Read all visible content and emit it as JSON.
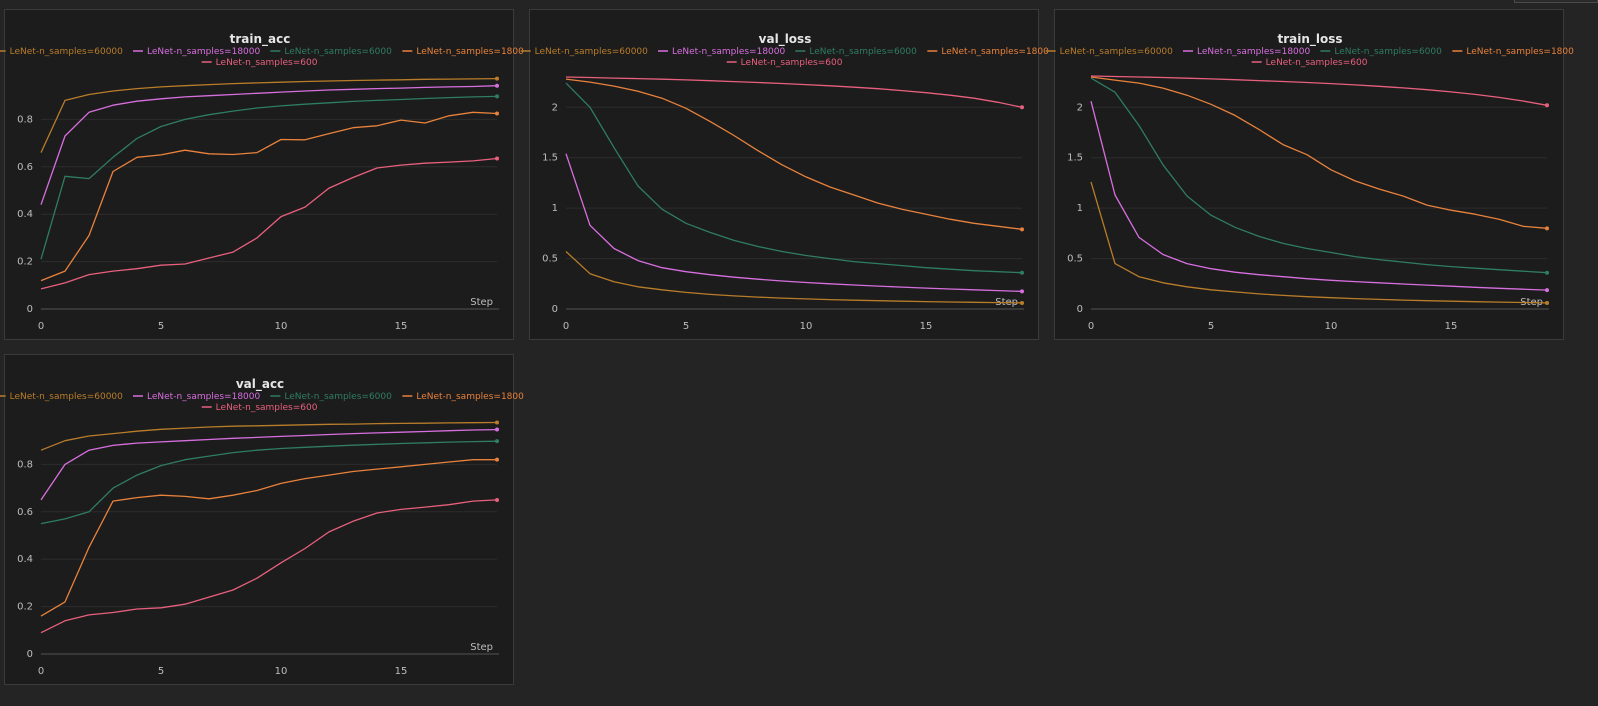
{
  "chart_data": [
    {
      "type": "line",
      "title": "train_acc",
      "xlabel": "Step",
      "xlim": [
        0,
        19
      ],
      "ylim": [
        0,
        1
      ],
      "xticks": [
        0,
        5,
        10,
        15
      ],
      "yticks": [
        0,
        0.2,
        0.4,
        0.6,
        0.8
      ],
      "ytick_labels": [
        "0",
        "0.2",
        "0.4",
        "0.6",
        "0.8"
      ],
      "x": [
        0,
        1,
        2,
        3,
        4,
        5,
        6,
        7,
        8,
        9,
        10,
        11,
        12,
        13,
        14,
        15,
        16,
        17,
        18,
        19
      ],
      "series": [
        {
          "name": "LeNet-n_samples=60000",
          "color": "#b97d2a",
          "values": [
            0.66,
            0.88,
            0.905,
            0.92,
            0.93,
            0.937,
            0.942,
            0.947,
            0.951,
            0.954,
            0.957,
            0.96,
            0.962,
            0.964,
            0.966,
            0.967,
            0.969,
            0.97,
            0.971,
            0.972
          ]
        },
        {
          "name": "LeNet-n_samples=18000",
          "color": "#d86fe0",
          "values": [
            0.44,
            0.73,
            0.83,
            0.86,
            0.877,
            0.887,
            0.895,
            0.9,
            0.905,
            0.91,
            0.915,
            0.92,
            0.924,
            0.927,
            0.93,
            0.932,
            0.935,
            0.937,
            0.939,
            0.942
          ]
        },
        {
          "name": "LeNet-n_samples=6000",
          "color": "#2f7d62",
          "values": [
            0.21,
            0.56,
            0.55,
            0.64,
            0.72,
            0.77,
            0.8,
            0.82,
            0.835,
            0.848,
            0.857,
            0.864,
            0.87,
            0.876,
            0.88,
            0.884,
            0.888,
            0.892,
            0.895,
            0.897
          ]
        },
        {
          "name": "LeNet-n_samples=1800",
          "color": "#e8823c",
          "values": [
            0.12,
            0.16,
            0.31,
            0.58,
            0.64,
            0.65,
            0.67,
            0.655,
            0.652,
            0.66,
            0.715,
            0.714,
            0.74,
            0.765,
            0.773,
            0.797,
            0.785,
            0.815,
            0.83,
            0.825
          ]
        },
        {
          "name": "LeNet-n_samples=600",
          "color": "#e8607e",
          "values": [
            0.085,
            0.11,
            0.145,
            0.16,
            0.17,
            0.185,
            0.19,
            0.215,
            0.24,
            0.3,
            0.39,
            0.43,
            0.51,
            0.555,
            0.595,
            0.607,
            0.615,
            0.62,
            0.625,
            0.635
          ]
        }
      ]
    },
    {
      "type": "line",
      "title": "val_loss",
      "xlabel": "Step",
      "xlim": [
        0,
        19
      ],
      "ylim": [
        0,
        2.35
      ],
      "xticks": [
        0,
        5,
        10,
        15
      ],
      "yticks": [
        0,
        0.5,
        1,
        1.5,
        2
      ],
      "ytick_labels": [
        "0",
        "0.5",
        "1",
        "1.5",
        "2"
      ],
      "x": [
        0,
        1,
        2,
        3,
        4,
        5,
        6,
        7,
        8,
        9,
        10,
        11,
        12,
        13,
        14,
        15,
        16,
        17,
        18,
        19
      ],
      "series": [
        {
          "name": "LeNet-n_samples=60000",
          "color": "#b97d2a",
          "values": [
            0.57,
            0.35,
            0.27,
            0.22,
            0.19,
            0.165,
            0.145,
            0.13,
            0.118,
            0.108,
            0.1,
            0.093,
            0.087,
            0.082,
            0.077,
            0.073,
            0.069,
            0.066,
            0.063,
            0.06
          ]
        },
        {
          "name": "LeNet-n_samples=18000",
          "color": "#d86fe0",
          "values": [
            1.54,
            0.83,
            0.6,
            0.48,
            0.41,
            0.37,
            0.34,
            0.315,
            0.295,
            0.278,
            0.263,
            0.25,
            0.238,
            0.227,
            0.217,
            0.207,
            0.198,
            0.19,
            0.182,
            0.175
          ]
        },
        {
          "name": "LeNet-n_samples=6000",
          "color": "#2f7d62",
          "values": [
            2.24,
            2.0,
            1.6,
            1.22,
            0.99,
            0.85,
            0.76,
            0.68,
            0.62,
            0.57,
            0.53,
            0.5,
            0.47,
            0.45,
            0.43,
            0.41,
            0.395,
            0.38,
            0.37,
            0.36
          ]
        },
        {
          "name": "LeNet-n_samples=1800",
          "color": "#e8823c",
          "values": [
            2.28,
            2.25,
            2.21,
            2.16,
            2.09,
            1.99,
            1.86,
            1.72,
            1.57,
            1.43,
            1.31,
            1.21,
            1.13,
            1.05,
            0.99,
            0.94,
            0.89,
            0.85,
            0.82,
            0.79
          ]
        },
        {
          "name": "LeNet-n_samples=600",
          "color": "#e8607e",
          "values": [
            2.3,
            2.295,
            2.29,
            2.285,
            2.279,
            2.272,
            2.264,
            2.255,
            2.246,
            2.236,
            2.225,
            2.213,
            2.199,
            2.184,
            2.166,
            2.145,
            2.12,
            2.09,
            2.05,
            2.0
          ]
        }
      ]
    },
    {
      "type": "line",
      "title": "train_loss",
      "xlabel": "Step",
      "xlim": [
        0,
        19
      ],
      "ylim": [
        0,
        2.35
      ],
      "xticks": [
        0,
        5,
        10,
        15
      ],
      "yticks": [
        0,
        0.5,
        1,
        1.5,
        2
      ],
      "ytick_labels": [
        "0",
        "0.5",
        "1",
        "1.5",
        "2"
      ],
      "x": [
        0,
        1,
        2,
        3,
        4,
        5,
        6,
        7,
        8,
        9,
        10,
        11,
        12,
        13,
        14,
        15,
        16,
        17,
        18,
        19
      ],
      "series": [
        {
          "name": "LeNet-n_samples=60000",
          "color": "#b97d2a",
          "values": [
            1.26,
            0.45,
            0.32,
            0.26,
            0.22,
            0.19,
            0.17,
            0.15,
            0.135,
            0.122,
            0.112,
            0.103,
            0.095,
            0.088,
            0.082,
            0.077,
            0.072,
            0.068,
            0.064,
            0.06
          ]
        },
        {
          "name": "LeNet-n_samples=18000",
          "color": "#d86fe0",
          "values": [
            2.06,
            1.13,
            0.71,
            0.54,
            0.45,
            0.4,
            0.365,
            0.34,
            0.32,
            0.3,
            0.285,
            0.272,
            0.26,
            0.248,
            0.237,
            0.226,
            0.215,
            0.205,
            0.196,
            0.187
          ]
        },
        {
          "name": "LeNet-n_samples=6000",
          "color": "#2f7d62",
          "values": [
            2.29,
            2.15,
            1.82,
            1.43,
            1.12,
            0.93,
            0.81,
            0.72,
            0.65,
            0.6,
            0.56,
            0.52,
            0.49,
            0.465,
            0.44,
            0.42,
            0.405,
            0.39,
            0.375,
            0.36
          ]
        },
        {
          "name": "LeNet-n_samples=1800",
          "color": "#e8823c",
          "values": [
            2.3,
            2.27,
            2.24,
            2.19,
            2.12,
            2.03,
            1.92,
            1.78,
            1.63,
            1.53,
            1.38,
            1.27,
            1.19,
            1.12,
            1.03,
            0.98,
            0.94,
            0.89,
            0.82,
            0.8
          ]
        },
        {
          "name": "LeNet-n_samples=600",
          "color": "#e8607e",
          "values": [
            2.31,
            2.305,
            2.3,
            2.295,
            2.289,
            2.282,
            2.274,
            2.265,
            2.256,
            2.246,
            2.235,
            2.222,
            2.208,
            2.192,
            2.174,
            2.153,
            2.128,
            2.098,
            2.062,
            2.02
          ]
        }
      ]
    },
    {
      "type": "line",
      "title": "val_acc",
      "xlabel": "Step",
      "xlim": [
        0,
        19
      ],
      "ylim": [
        0,
        1
      ],
      "xticks": [
        0,
        5,
        10,
        15
      ],
      "yticks": [
        0,
        0.2,
        0.4,
        0.6,
        0.8
      ],
      "ytick_labels": [
        "0",
        "0.2",
        "0.4",
        "0.6",
        "0.8"
      ],
      "x": [
        0,
        1,
        2,
        3,
        4,
        5,
        6,
        7,
        8,
        9,
        10,
        11,
        12,
        13,
        14,
        15,
        16,
        17,
        18,
        19
      ],
      "series": [
        {
          "name": "LeNet-n_samples=60000",
          "color": "#b97d2a",
          "values": [
            0.86,
            0.9,
            0.92,
            0.93,
            0.94,
            0.948,
            0.953,
            0.958,
            0.961,
            0.963,
            0.965,
            0.967,
            0.969,
            0.97,
            0.972,
            0.973,
            0.974,
            0.975,
            0.976,
            0.977
          ]
        },
        {
          "name": "LeNet-n_samples=18000",
          "color": "#d86fe0",
          "values": [
            0.65,
            0.8,
            0.86,
            0.88,
            0.89,
            0.895,
            0.9,
            0.905,
            0.91,
            0.914,
            0.918,
            0.922,
            0.926,
            0.93,
            0.933,
            0.936,
            0.939,
            0.942,
            0.945,
            0.947
          ]
        },
        {
          "name": "LeNet-n_samples=6000",
          "color": "#2f7d62",
          "values": [
            0.55,
            0.57,
            0.6,
            0.7,
            0.755,
            0.795,
            0.82,
            0.835,
            0.85,
            0.86,
            0.867,
            0.872,
            0.877,
            0.881,
            0.885,
            0.888,
            0.891,
            0.894,
            0.896,
            0.898
          ]
        },
        {
          "name": "LeNet-n_samples=1800",
          "color": "#e8823c",
          "values": [
            0.16,
            0.22,
            0.45,
            0.645,
            0.66,
            0.67,
            0.665,
            0.655,
            0.67,
            0.69,
            0.72,
            0.74,
            0.755,
            0.77,
            0.78,
            0.79,
            0.8,
            0.81,
            0.82,
            0.82
          ]
        },
        {
          "name": "LeNet-n_samples=600",
          "color": "#e8607e",
          "values": [
            0.09,
            0.14,
            0.165,
            0.175,
            0.19,
            0.195,
            0.21,
            0.24,
            0.27,
            0.32,
            0.385,
            0.445,
            0.515,
            0.56,
            0.595,
            0.61,
            0.62,
            0.63,
            0.645,
            0.65
          ]
        }
      ]
    }
  ]
}
